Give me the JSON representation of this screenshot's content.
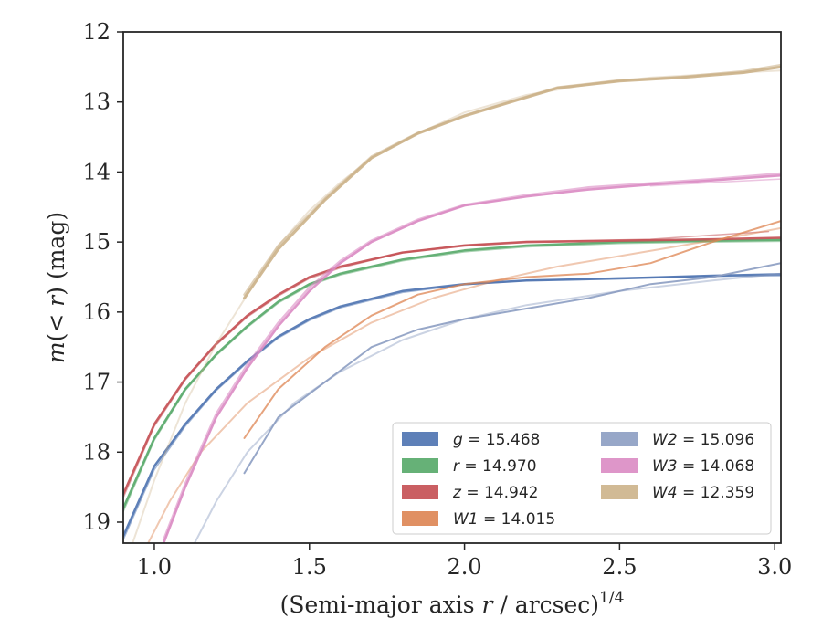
{
  "chart_data": {
    "type": "line",
    "title": "",
    "xlabel_prefix": "(Semi-major axis ",
    "xlabel_var": "r",
    "xlabel_mid": " / arcsec)",
    "xlabel_exp": "1/4",
    "ylabel_var1": "m",
    "ylabel_mid": "(< ",
    "ylabel_var2": "r",
    "ylabel_end": ") (mag)",
    "xlim": [
      0.9,
      3.02
    ],
    "ylim": [
      19.3,
      12.0
    ],
    "y_inverted": true,
    "grid": false,
    "legend_position": "lower-right",
    "xticks": [
      1.0,
      1.5,
      2.0,
      2.5,
      3.0
    ],
    "xtick_labels": [
      "1.0",
      "1.5",
      "2.0",
      "2.5",
      "3.0"
    ],
    "yticks": [
      12,
      13,
      14,
      15,
      16,
      17,
      18,
      19
    ],
    "ytick_labels": [
      "12",
      "13",
      "14",
      "15",
      "16",
      "17",
      "18",
      "19"
    ],
    "series": [
      {
        "name": "g",
        "label_var": "g",
        "label_sub": "",
        "label_value": "= 15.468",
        "color": "#4c72b0",
        "curves": [
          {
            "x": [
              0.9,
              1.0,
              1.1,
              1.2,
              1.3,
              1.4,
              1.5,
              1.6,
              1.8,
              2.0,
              2.2,
              2.5,
              2.8,
              3.02
            ],
            "y": [
              19.2,
              18.2,
              17.6,
              17.1,
              16.7,
              16.35,
              16.1,
              15.92,
              15.7,
              15.6,
              15.55,
              15.52,
              15.48,
              15.46
            ],
            "opacity": 0.9,
            "width": 2.5
          },
          {
            "x": [
              0.9,
              1.0,
              1.1,
              1.2,
              1.3,
              1.4,
              1.5,
              1.6,
              1.8,
              2.0,
              2.2,
              2.5,
              2.8,
              3.02
            ],
            "y": [
              19.25,
              18.25,
              17.63,
              17.12,
              16.72,
              16.37,
              16.12,
              15.94,
              15.72,
              15.61,
              15.55,
              15.51,
              15.49,
              15.48
            ],
            "opacity": 0.5,
            "width": 1.5
          }
        ]
      },
      {
        "name": "r",
        "label_var": "r",
        "label_sub": "",
        "label_value": "= 14.970",
        "color": "#55a868",
        "curves": [
          {
            "x": [
              0.9,
              1.0,
              1.1,
              1.2,
              1.3,
              1.4,
              1.5,
              1.6,
              1.8,
              2.0,
              2.2,
              2.5,
              2.8,
              3.02
            ],
            "y": [
              18.8,
              17.8,
              17.1,
              16.6,
              16.2,
              15.85,
              15.6,
              15.45,
              15.25,
              15.12,
              15.05,
              15.0,
              14.98,
              14.97
            ],
            "opacity": 0.9,
            "width": 2.5
          },
          {
            "x": [
              0.9,
              1.0,
              1.1,
              1.2,
              1.3,
              1.4,
              1.5,
              1.6,
              1.8,
              2.0,
              2.2,
              2.5,
              2.8,
              3.02
            ],
            "y": [
              18.85,
              17.83,
              17.12,
              16.62,
              16.22,
              15.87,
              15.62,
              15.47,
              15.27,
              15.14,
              15.07,
              15.02,
              15.0,
              14.99
            ],
            "opacity": 0.5,
            "width": 1.5
          }
        ]
      },
      {
        "name": "z",
        "label_var": "z",
        "label_sub": "",
        "label_value": "= 14.942",
        "color": "#c44e52",
        "curves": [
          {
            "x": [
              0.9,
              1.0,
              1.1,
              1.2,
              1.3,
              1.4,
              1.5,
              1.6,
              1.8,
              2.0,
              2.2,
              2.5,
              2.8,
              3.02
            ],
            "y": [
              18.6,
              17.6,
              16.95,
              16.45,
              16.05,
              15.75,
              15.5,
              15.35,
              15.15,
              15.05,
              15.0,
              14.98,
              14.96,
              14.94
            ],
            "opacity": 0.9,
            "width": 2.5
          },
          {
            "x": [
              0.9,
              1.0,
              1.1,
              1.2,
              1.3,
              1.4,
              1.5,
              1.6,
              1.8,
              2.0,
              2.2,
              2.5,
              2.6,
              2.8,
              2.98
            ],
            "y": [
              18.65,
              17.63,
              16.97,
              16.47,
              16.07,
              15.77,
              15.52,
              15.37,
              15.15,
              15.04,
              14.99,
              14.97,
              14.96,
              14.9,
              14.85
            ],
            "opacity": 0.5,
            "width": 1.5
          }
        ]
      },
      {
        "name": "W1",
        "label_var": "W",
        "label_sub": "1",
        "label_value": "= 14.015",
        "color": "#dd8452",
        "curves": [
          {
            "x": [
              1.29,
              1.4,
              1.55,
              1.7,
              1.85,
              2.0,
              2.2,
              2.4,
              2.6,
              2.8,
              3.02
            ],
            "y": [
              17.8,
              17.1,
              16.5,
              16.05,
              15.75,
              15.6,
              15.5,
              15.45,
              15.3,
              15.0,
              14.7
            ],
            "opacity": 0.75,
            "width": 2.0
          },
          {
            "x": [
              0.98,
              1.05,
              1.15,
              1.3,
              1.5,
              1.7,
              1.9,
              2.1,
              2.3,
              2.5,
              2.7,
              2.9,
              3.02
            ],
            "y": [
              19.3,
              18.7,
              18.0,
              17.3,
              16.65,
              16.15,
              15.8,
              15.55,
              15.35,
              15.2,
              15.05,
              14.9,
              14.8
            ],
            "opacity": 0.45,
            "width": 2.0
          }
        ]
      },
      {
        "name": "W2",
        "label_var": "W",
        "label_sub": "2",
        "label_value": "= 15.096",
        "color": "#8c9dc2",
        "curves": [
          {
            "x": [
              1.29,
              1.4,
              1.55,
              1.7,
              1.85,
              2.0,
              2.2,
              2.4,
              2.6,
              2.8,
              3.02
            ],
            "y": [
              18.3,
              17.5,
              17.0,
              16.5,
              16.25,
              16.1,
              15.95,
              15.8,
              15.6,
              15.5,
              15.3
            ],
            "opacity": 0.9,
            "width": 2.0
          },
          {
            "x": [
              1.13,
              1.2,
              1.3,
              1.45,
              1.6,
              1.8,
              2.0,
              2.2,
              2.5,
              2.8,
              3.02
            ],
            "y": [
              19.3,
              18.7,
              18.0,
              17.3,
              16.85,
              16.4,
              16.1,
              15.9,
              15.7,
              15.55,
              15.45
            ],
            "opacity": 0.45,
            "width": 2.0
          }
        ]
      },
      {
        "name": "W3",
        "label_var": "W",
        "label_sub": "3",
        "label_value": "= 14.068",
        "color": "#da8bc3",
        "curves": [
          {
            "x": [
              1.03,
              1.1,
              1.2,
              1.3,
              1.4,
              1.5,
              1.6,
              1.7,
              1.85,
              2.0,
              2.2,
              2.4,
              2.6,
              2.8,
              3.02
            ],
            "y": [
              19.3,
              18.5,
              17.5,
              16.8,
              16.2,
              15.7,
              15.3,
              15.0,
              14.7,
              14.48,
              14.35,
              14.25,
              14.18,
              14.12,
              14.05
            ],
            "opacity": 0.9,
            "width": 2.5
          },
          {
            "x": [
              1.03,
              1.1,
              1.2,
              1.3,
              1.4,
              1.5,
              1.6,
              1.7,
              1.85,
              2.0,
              2.2,
              2.4,
              2.6,
              2.8,
              3.02
            ],
            "y": [
              19.25,
              18.45,
              17.45,
              16.75,
              16.15,
              15.65,
              15.27,
              14.98,
              14.68,
              14.47,
              14.33,
              14.22,
              14.16,
              14.1,
              14.02
            ],
            "opacity": 0.6,
            "width": 2.5
          },
          {
            "x": [
              2.6,
              2.8,
              3.02
            ],
            "y": [
              14.2,
              14.15,
              14.1
            ],
            "opacity": 0.5,
            "width": 1.5
          }
        ]
      },
      {
        "name": "W4",
        "label_var": "W",
        "label_sub": "4",
        "label_value": "= 12.359",
        "color": "#ccb28a",
        "curves": [
          {
            "x": [
              1.29,
              1.4,
              1.55,
              1.7,
              1.85,
              2.0,
              2.15,
              2.3,
              2.5,
              2.7,
              2.9,
              3.02
            ],
            "y": [
              15.8,
              15.1,
              14.4,
              13.8,
              13.45,
              13.2,
              13.0,
              12.8,
              12.7,
              12.65,
              12.58,
              12.5
            ],
            "opacity": 0.9,
            "width": 3.0
          },
          {
            "x": [
              1.29,
              1.4,
              1.55,
              1.7,
              1.85,
              2.0,
              2.15,
              2.3,
              2.5,
              2.7,
              2.9,
              3.02
            ],
            "y": [
              15.75,
              15.05,
              14.38,
              13.78,
              13.44,
              13.19,
              12.99,
              12.79,
              12.69,
              12.64,
              12.56,
              12.47
            ],
            "opacity": 0.6,
            "width": 2.5
          },
          {
            "x": [
              0.93,
              1.0,
              1.1,
              1.2,
              1.3,
              1.4,
              1.5,
              1.6,
              1.7,
              1.85,
              2.0,
              2.2,
              2.4,
              2.6,
              2.8,
              3.02
            ],
            "y": [
              19.3,
              18.4,
              17.3,
              16.45,
              15.75,
              15.05,
              14.55,
              14.15,
              13.8,
              13.45,
              13.15,
              12.9,
              12.75,
              12.65,
              12.6,
              12.55
            ],
            "opacity": 0.35,
            "width": 2.0
          }
        ]
      }
    ]
  }
}
